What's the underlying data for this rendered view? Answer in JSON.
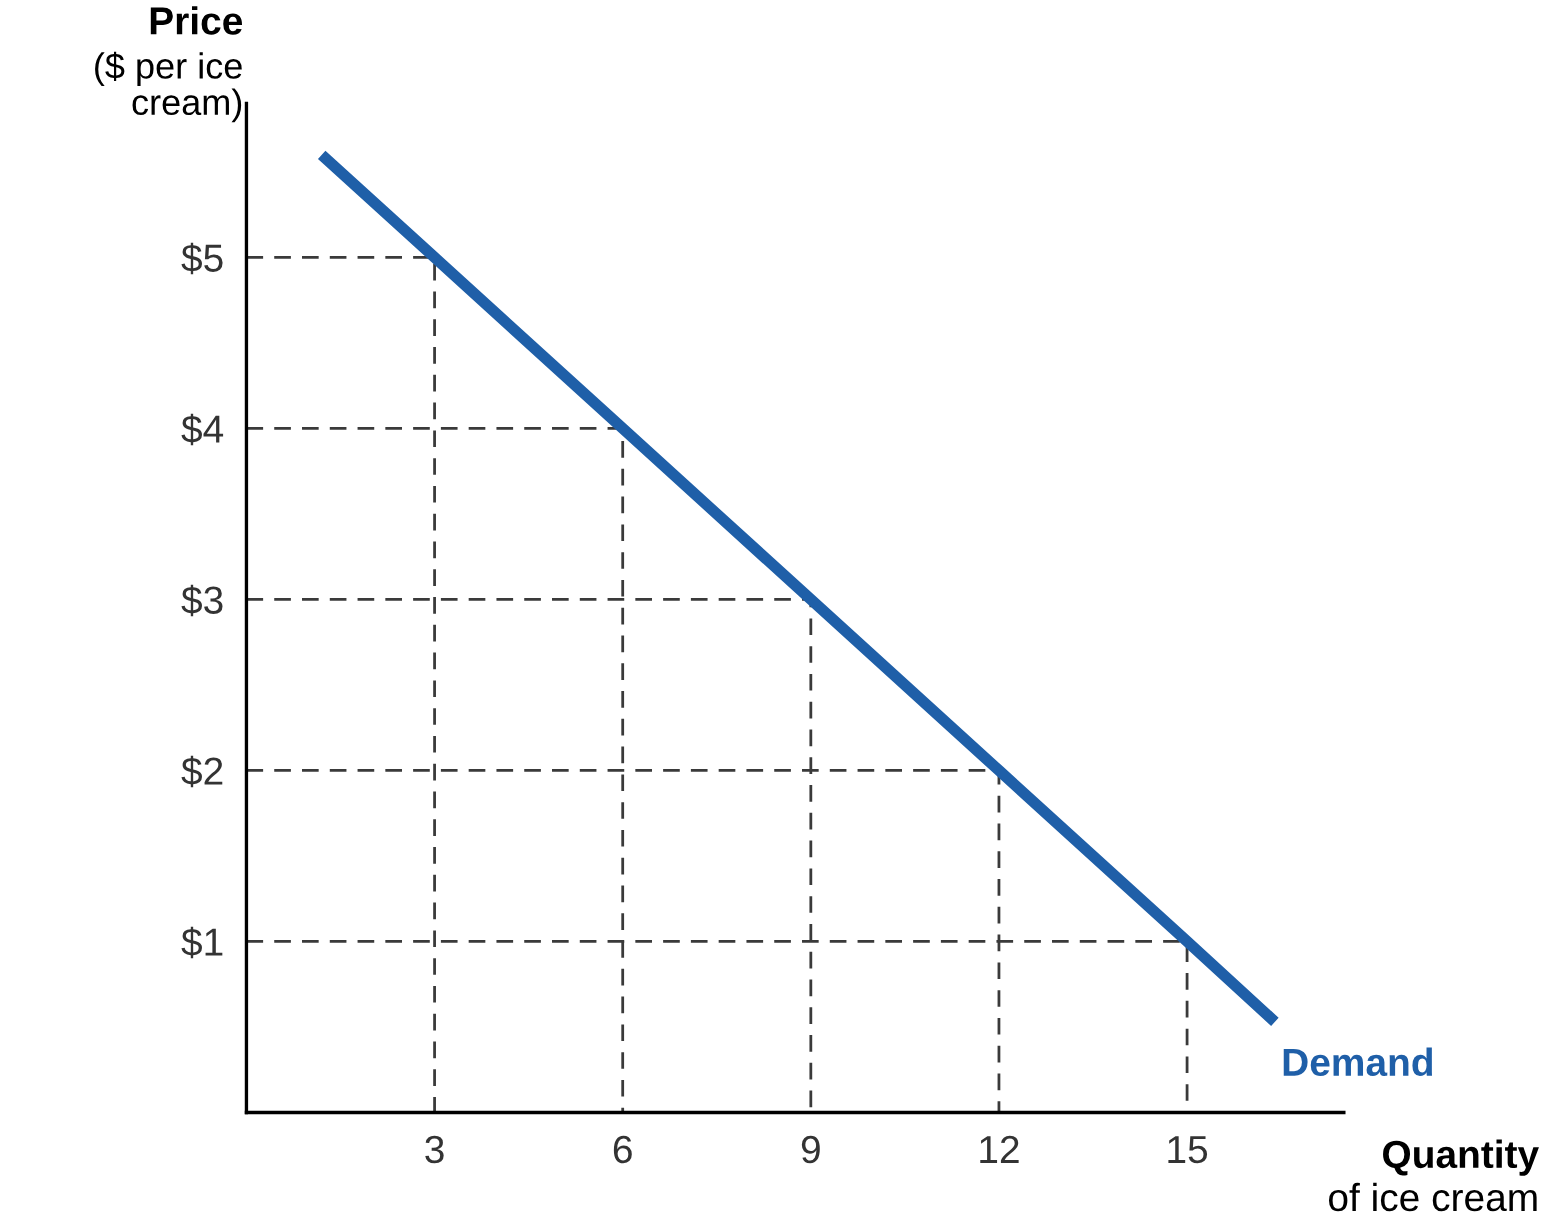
{
  "chart_data": {
    "type": "line",
    "xlabel": "Quantity\nof ice cream",
    "ylabel": "Price\n($ per ice\ncream)",
    "xlim": [
      0,
      17.5
    ],
    "ylim": [
      0,
      5.9
    ],
    "xticks": [
      3,
      6,
      9,
      12,
      15
    ],
    "yticks": [
      {
        "value": 1,
        "label": "$1"
      },
      {
        "value": 2,
        "label": "$2"
      },
      {
        "value": 3,
        "label": "$3"
      },
      {
        "value": 4,
        "label": "$4"
      },
      {
        "value": 5,
        "label": "$5"
      }
    ],
    "grid": false,
    "legend": false,
    "series": [
      {
        "color": "#3a3a3a",
        "line_style": "dashed",
        "x": [
          0,
          3,
          3
        ],
        "values": [
          5,
          5,
          0
        ]
      },
      {
        "color": "#3a3a3a",
        "line_style": "dashed",
        "x": [
          0,
          6,
          6
        ],
        "values": [
          4,
          4,
          0
        ]
      },
      {
        "color": "#3a3a3a",
        "line_style": "dashed",
        "x": [
          0,
          9,
          9
        ],
        "values": [
          3,
          3,
          0
        ]
      },
      {
        "color": "#3a3a3a",
        "line_style": "dashed",
        "x": [
          0,
          12,
          12
        ],
        "values": [
          2,
          2,
          0
        ]
      },
      {
        "color": "#3a3a3a",
        "line_style": "dashed",
        "x": [
          0,
          15,
          15
        ],
        "values": [
          1,
          1,
          0
        ]
      },
      {
        "name": "Demand",
        "color": "#1f5fa8",
        "line_style": "solid",
        "x": [
          1.2,
          3,
          6,
          9,
          12,
          15,
          16.4
        ],
        "values": [
          5.6,
          5,
          4,
          3,
          2,
          1,
          0.53
        ]
      }
    ]
  }
}
